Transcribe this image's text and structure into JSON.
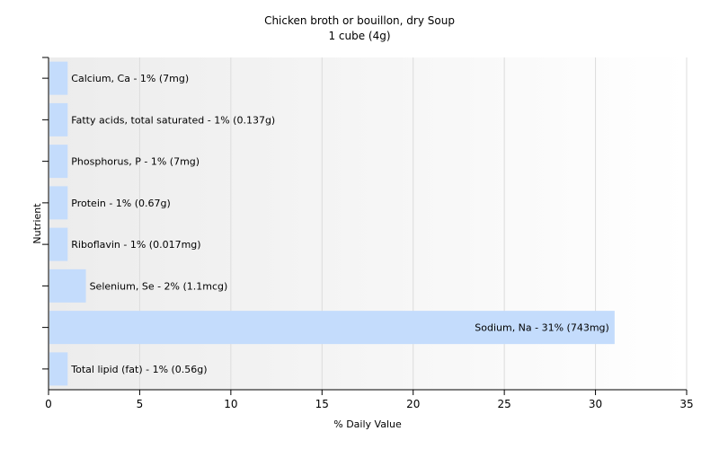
{
  "chart_data": {
    "type": "bar",
    "orientation": "horizontal",
    "title": "Chicken broth or bouillon, dry Soup",
    "subtitle": "1 cube (4g)",
    "xlabel": "% Daily Value",
    "ylabel": "Nutrient",
    "xlim": [
      0,
      35
    ],
    "xticks": [
      0,
      5,
      10,
      15,
      20,
      25,
      30,
      35
    ],
    "grid": true,
    "bar_color": "#c4dcfc",
    "categories": [
      "Calcium, Ca",
      "Fatty acids, total saturated",
      "Phosphorus, P",
      "Protein",
      "Riboflavin",
      "Selenium, Se",
      "Sodium, Na",
      "Total lipid (fat)"
    ],
    "values": [
      1,
      1,
      1,
      1,
      1,
      2,
      31,
      1
    ],
    "labels": [
      "Calcium, Ca - 1% (7mg)",
      "Fatty acids, total saturated - 1% (0.137g)",
      "Phosphorus, P - 1% (7mg)",
      "Protein - 1% (0.67g)",
      "Riboflavin - 1% (0.017mg)",
      "Selenium, Se - 2% (1.1mcg)",
      "Sodium, Na - 31% (743mg)",
      "Total lipid (fat) - 1% (0.56g)"
    ]
  }
}
